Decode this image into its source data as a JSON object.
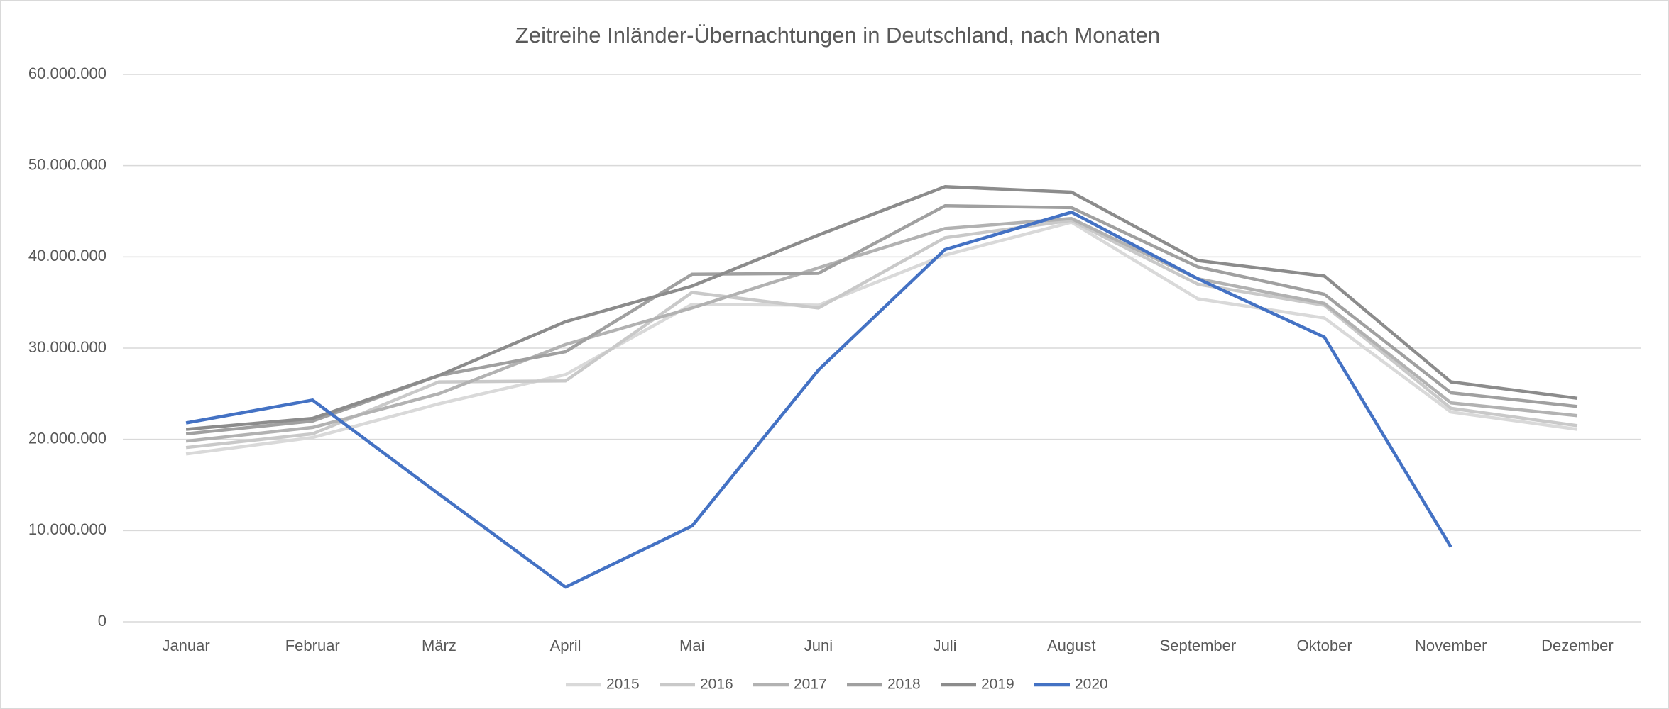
{
  "chart_data": {
    "type": "line",
    "title": "Zeitreihe Inländer-Übernachtungen in Deutschland, nach Monaten",
    "categories": [
      "Januar",
      "Februar",
      "März",
      "April",
      "Mai",
      "Juni",
      "Juli",
      "August",
      "September",
      "Oktober",
      "November",
      "Dezember"
    ],
    "series": [
      {
        "name": "2015",
        "color": "#d9d9d9",
        "values": [
          18400000,
          20200000,
          23900000,
          27100000,
          34800000,
          34700000,
          40200000,
          43800000,
          35400000,
          33300000,
          23000000,
          21100000
        ]
      },
      {
        "name": "2016",
        "color": "#c9c9c9",
        "values": [
          19100000,
          20600000,
          26300000,
          26400000,
          36100000,
          34400000,
          42100000,
          44000000,
          37000000,
          34700000,
          23400000,
          21500000
        ]
      },
      {
        "name": "2017",
        "color": "#b2b2b2",
        "values": [
          19800000,
          21300000,
          25000000,
          30400000,
          34400000,
          38800000,
          43100000,
          44200000,
          37600000,
          34900000,
          24000000,
          22600000
        ]
      },
      {
        "name": "2018",
        "color": "#a0a0a0",
        "values": [
          20600000,
          22000000,
          27000000,
          29600000,
          38100000,
          38200000,
          45600000,
          45400000,
          38900000,
          35900000,
          25100000,
          23600000
        ]
      },
      {
        "name": "2019",
        "color": "#8c8c8c",
        "values": [
          21100000,
          22300000,
          27000000,
          32900000,
          36800000,
          42400000,
          47700000,
          47100000,
          39600000,
          37900000,
          26300000,
          24500000
        ]
      },
      {
        "name": "2020",
        "color": "#4472c4",
        "values": [
          21800000,
          24300000,
          14000000,
          3800000,
          10500000,
          27600000,
          40800000,
          44900000,
          37600000,
          31200000,
          8200000,
          null
        ]
      }
    ],
    "ylim": [
      0,
      60000000
    ],
    "yticks": [
      0,
      {
        "value": 10000000,
        "label": "10.000.000"
      },
      {
        "value": 20000000,
        "label": "20.000.000"
      },
      {
        "value": 30000000,
        "label": "30.000.000"
      },
      {
        "value": 40000000,
        "label": "40.000.000"
      },
      {
        "value": 50000000,
        "label": "50.000.000"
      },
      {
        "value": 60000000,
        "label": "60.000.000"
      }
    ],
    "grid": true,
    "legend": "bottom"
  }
}
